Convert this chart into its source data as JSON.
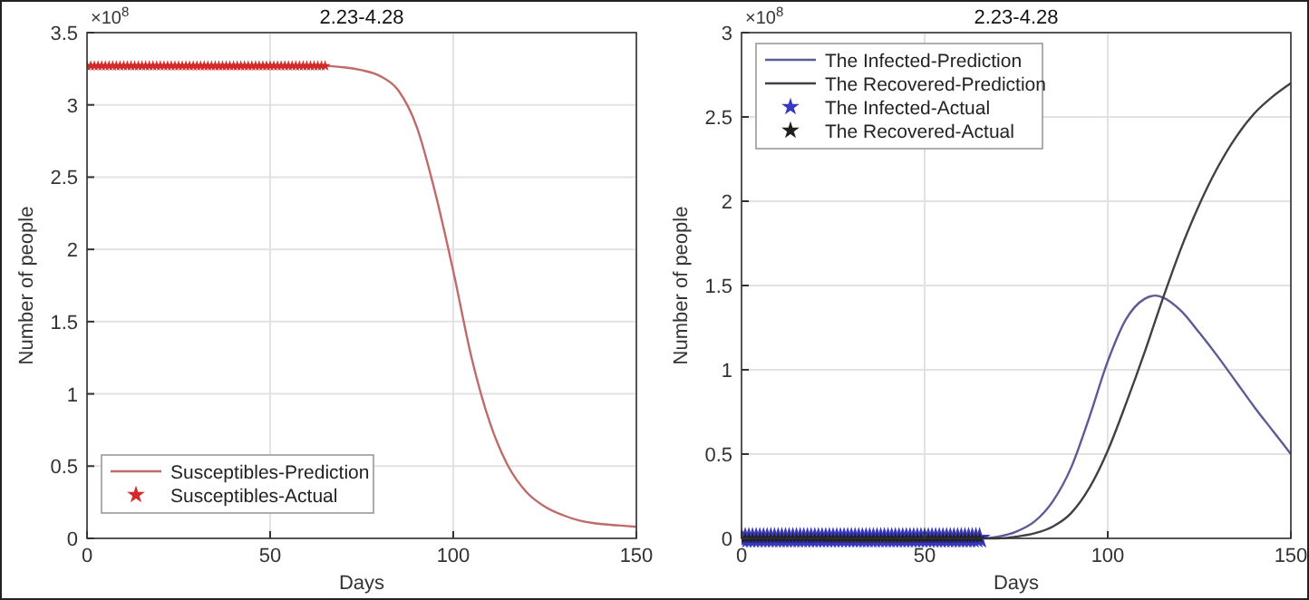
{
  "chart_data": [
    {
      "type": "line",
      "title": "2.23-4.28",
      "xlabel": "Days",
      "ylabel": "Number of people",
      "annotations": [
        "×10$^{8}$"
      ],
      "xlim": [
        0,
        150
      ],
      "xticks": [
        0,
        50,
        100,
        150
      ],
      "ylim": [
        0,
        3.5
      ],
      "yticks": [
        0,
        0.5,
        1,
        1.5,
        2,
        2.5,
        3,
        3.5
      ],
      "grid": true,
      "legend": "bottom left",
      "series": [
        {
          "name": "Susceptibles-Prediction",
          "color": "#c06a6a",
          "line_style": "solid",
          "x": [
            0,
            5,
            10,
            15,
            20,
            25,
            30,
            35,
            40,
            45,
            50,
            55,
            60,
            65,
            70,
            75,
            80,
            85,
            90,
            95,
            100,
            105,
            110,
            115,
            120,
            125,
            130,
            135,
            140,
            145,
            150
          ],
          "values": [
            3.27,
            3.27,
            3.27,
            3.27,
            3.27,
            3.27,
            3.27,
            3.27,
            3.27,
            3.27,
            3.27,
            3.27,
            3.27,
            3.27,
            3.26,
            3.24,
            3.2,
            3.1,
            2.85,
            2.4,
            1.85,
            1.25,
            0.8,
            0.5,
            0.32,
            0.22,
            0.16,
            0.12,
            0.1,
            0.09,
            0.08
          ]
        },
        {
          "name": "Susceptibles-Actual",
          "type": "scatter",
          "marker": "star",
          "color": "#d42a2a",
          "x": [
            0,
            1,
            2,
            3,
            4,
            5,
            6,
            7,
            8,
            9,
            10,
            11,
            12,
            13,
            14,
            15,
            16,
            17,
            18,
            19,
            20,
            21,
            22,
            23,
            24,
            25,
            26,
            27,
            28,
            29,
            30,
            31,
            32,
            33,
            34,
            35,
            36,
            37,
            38,
            39,
            40,
            41,
            42,
            43,
            44,
            45,
            46,
            47,
            48,
            49,
            50,
            51,
            52,
            53,
            54,
            55,
            56,
            57,
            58,
            59,
            60,
            61,
            62,
            63,
            64,
            65
          ],
          "values": [
            3.27,
            3.27,
            3.27,
            3.27,
            3.27,
            3.27,
            3.27,
            3.27,
            3.27,
            3.27,
            3.27,
            3.27,
            3.27,
            3.27,
            3.27,
            3.27,
            3.27,
            3.27,
            3.27,
            3.27,
            3.27,
            3.27,
            3.27,
            3.27,
            3.27,
            3.27,
            3.27,
            3.27,
            3.27,
            3.27,
            3.27,
            3.27,
            3.27,
            3.27,
            3.27,
            3.27,
            3.27,
            3.27,
            3.27,
            3.27,
            3.27,
            3.27,
            3.27,
            3.27,
            3.27,
            3.27,
            3.27,
            3.27,
            3.27,
            3.27,
            3.27,
            3.27,
            3.27,
            3.27,
            3.27,
            3.27,
            3.27,
            3.27,
            3.27,
            3.27,
            3.27,
            3.27,
            3.27,
            3.27,
            3.27,
            3.27
          ]
        }
      ]
    },
    {
      "type": "line",
      "title": "2.23-4.28",
      "xlabel": "Days",
      "ylabel": "Number of people",
      "annotations": [
        "×10$^{8}$"
      ],
      "xlim": [
        0,
        150
      ],
      "xticks": [
        0,
        50,
        100,
        150
      ],
      "ylim": [
        0,
        3
      ],
      "yticks": [
        0,
        0.5,
        1,
        1.5,
        2,
        2.5,
        3
      ],
      "grid": true,
      "legend": "top left",
      "series": [
        {
          "name": "The Infected-Prediction",
          "color": "#5c5c94",
          "line_style": "solid",
          "x": [
            0,
            10,
            20,
            30,
            40,
            50,
            60,
            65,
            70,
            75,
            80,
            85,
            90,
            95,
            100,
            105,
            110,
            113,
            115,
            120,
            125,
            130,
            135,
            140,
            145,
            150
          ],
          "values": [
            0,
            0,
            0,
            0,
            0,
            0,
            0,
            0,
            0.01,
            0.04,
            0.1,
            0.22,
            0.42,
            0.72,
            1.05,
            1.3,
            1.42,
            1.44,
            1.43,
            1.35,
            1.22,
            1.08,
            0.93,
            0.78,
            0.64,
            0.5
          ]
        },
        {
          "name": "The Recovered-Prediction",
          "color": "#404048",
          "line_style": "solid",
          "x": [
            0,
            10,
            20,
            30,
            40,
            50,
            60,
            70,
            75,
            80,
            85,
            90,
            95,
            100,
            105,
            110,
            115,
            120,
            125,
            130,
            135,
            140,
            145,
            150
          ],
          "values": [
            0,
            0,
            0,
            0,
            0,
            0,
            0,
            0,
            0.01,
            0.03,
            0.07,
            0.15,
            0.3,
            0.52,
            0.8,
            1.1,
            1.42,
            1.72,
            1.98,
            2.2,
            2.38,
            2.52,
            2.62,
            2.7
          ]
        },
        {
          "name": "The Infected-Actual",
          "type": "scatter",
          "marker": "star",
          "color": "#3838c0",
          "x": [
            0,
            1,
            2,
            3,
            4,
            5,
            6,
            7,
            8,
            9,
            10,
            11,
            12,
            13,
            14,
            15,
            16,
            17,
            18,
            19,
            20,
            21,
            22,
            23,
            24,
            25,
            26,
            27,
            28,
            29,
            30,
            31,
            32,
            33,
            34,
            35,
            36,
            37,
            38,
            39,
            40,
            41,
            42,
            43,
            44,
            45,
            46,
            47,
            48,
            49,
            50,
            51,
            52,
            53,
            54,
            55,
            56,
            57,
            58,
            59,
            60,
            61,
            62,
            63,
            64,
            65
          ],
          "values": [
            0,
            0,
            0,
            0,
            0,
            0,
            0,
            0,
            0,
            0,
            0,
            0,
            0,
            0,
            0,
            0,
            0,
            0,
            0,
            0,
            0,
            0,
            0,
            0,
            0,
            0,
            0,
            0,
            0,
            0,
            0,
            0,
            0,
            0,
            0,
            0,
            0,
            0,
            0,
            0,
            0,
            0,
            0,
            0,
            0,
            0,
            0,
            0,
            0,
            0,
            0,
            0,
            0,
            0,
            0,
            0,
            0,
            0,
            0,
            0,
            0,
            0,
            0,
            0,
            0,
            0
          ]
        },
        {
          "name": "The Recovered-Actual",
          "type": "scatter",
          "marker": "star",
          "color": "#202020",
          "x": [
            0,
            1,
            2,
            3,
            4,
            5,
            6,
            7,
            8,
            9,
            10,
            11,
            12,
            13,
            14,
            15,
            16,
            17,
            18,
            19,
            20,
            21,
            22,
            23,
            24,
            25,
            26,
            27,
            28,
            29,
            30,
            31,
            32,
            33,
            34,
            35,
            36,
            37,
            38,
            39,
            40,
            41,
            42,
            43,
            44,
            45,
            46,
            47,
            48,
            49,
            50,
            51,
            52,
            53,
            54,
            55,
            56,
            57,
            58,
            59,
            60,
            61,
            62,
            63,
            64,
            65
          ],
          "values": [
            0,
            0,
            0,
            0,
            0,
            0,
            0,
            0,
            0,
            0,
            0,
            0,
            0,
            0,
            0,
            0,
            0,
            0,
            0,
            0,
            0,
            0,
            0,
            0,
            0,
            0,
            0,
            0,
            0,
            0,
            0,
            0,
            0,
            0,
            0,
            0,
            0,
            0,
            0,
            0,
            0,
            0,
            0,
            0,
            0,
            0,
            0,
            0,
            0,
            0,
            0,
            0,
            0,
            0,
            0,
            0,
            0,
            0,
            0,
            0,
            0,
            0,
            0,
            0,
            0,
            0
          ]
        }
      ]
    }
  ]
}
